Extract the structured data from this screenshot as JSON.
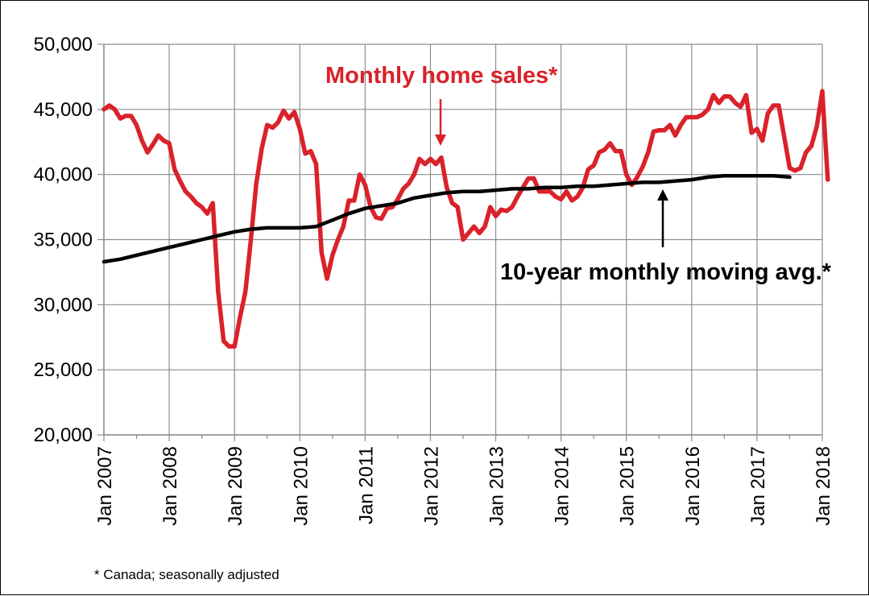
{
  "chart_data": {
    "type": "line",
    "title": "",
    "xlabel": "",
    "ylabel": "",
    "ylim": [
      20000,
      50000
    ],
    "yticks": [
      "20,000",
      "25,000",
      "30,000",
      "35,000",
      "40,000",
      "45,000",
      "50,000"
    ],
    "xticks": [
      "Jan 2007",
      "Jan 2008",
      "Jan 2009",
      "Jan 2010",
      "Jan 2011",
      "Jan 2012",
      "Jan 2013",
      "Jan 2014",
      "Jan 2015",
      "Jan 2016",
      "Jan 2017",
      "Jan 2018"
    ],
    "grid": true,
    "colors": {
      "sales": "#d9222a",
      "avg": "#000000"
    },
    "series": [
      {
        "name": "Monthly home sales*",
        "values": [
          45000,
          45300,
          45000,
          44300,
          44500,
          44500,
          43800,
          42600,
          41700,
          42300,
          43000,
          42600,
          42400,
          40400,
          39500,
          38700,
          38300,
          37800,
          37500,
          37000,
          37800,
          31000,
          27200,
          26800,
          26800,
          29000,
          31000,
          35000,
          39300,
          42000,
          43800,
          43600,
          44000,
          44900,
          44300,
          44800,
          43500,
          41600,
          41800,
          40800,
          34000,
          32000,
          33800,
          35000,
          36000,
          38000,
          38000,
          40000,
          39200,
          37500,
          36700,
          36600,
          37400,
          37500,
          38100,
          38900,
          39300,
          40000,
          41200,
          40800,
          41200,
          40800,
          41300,
          39000,
          37800,
          37500,
          35000,
          35500,
          36000,
          35500,
          36000,
          37500,
          36800,
          37300,
          37200,
          37500,
          38300,
          39000,
          39700,
          39700,
          38700,
          38700,
          38700,
          38300,
          38100,
          38700,
          38000,
          38300,
          39000,
          40400,
          40700,
          41700,
          41900,
          42400,
          41800,
          41800,
          40000,
          39200,
          39800,
          40600,
          41700,
          43300,
          43400,
          43400,
          43800,
          43000,
          43800,
          44400,
          44400,
          44400,
          44600,
          45000,
          46100,
          45500,
          46000,
          46000,
          45500,
          45200,
          46100,
          43200,
          43500,
          42600,
          44700,
          45300,
          45300,
          42900,
          40500,
          40300,
          40500,
          41700,
          42200,
          43700,
          46400,
          39600
        ]
      },
      {
        "name": "10-year monthly moving avg.*",
        "values": [
          33300,
          33500,
          33800,
          34100,
          34400,
          34700,
          35000,
          35300,
          35600,
          35800,
          35900,
          35900,
          35900,
          36000,
          36500,
          37000,
          37400,
          37600,
          37800,
          38200,
          38400,
          38600,
          38700,
          38700,
          38800,
          38900,
          38900,
          39000,
          39000,
          39100,
          39100,
          39200,
          39300,
          39400,
          39400,
          39500,
          39600,
          39800,
          39900,
          39900,
          39900,
          39900,
          39800
        ]
      }
    ],
    "x_months_per_point_avg": 3
  },
  "annotations": {
    "sales_label": "Monthly home sales*",
    "avg_label": "10-year monthly moving avg.*"
  },
  "footnote": "* Canada; seasonally adjusted"
}
